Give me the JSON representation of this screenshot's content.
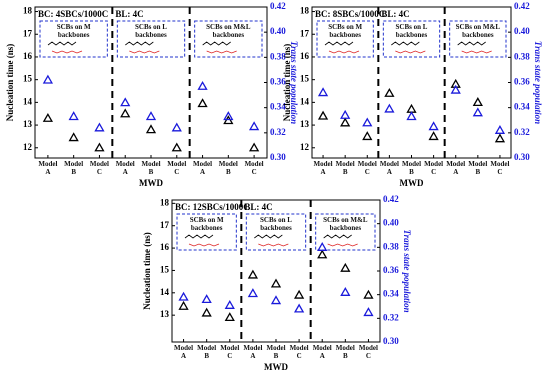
{
  "chart_data": [
    {
      "type": "scatter",
      "annotations": [
        "BC: 4SBCs/1000C",
        "BL: 4C"
      ],
      "group_labels": [
        "SCBs on M backbones",
        "SCBs on L backbones",
        "SCBs on M&L backbones"
      ],
      "categories": [
        "Model A",
        "Model B",
        "Model C",
        "Model A",
        "Model B",
        "Model C",
        "Model A",
        "Model B",
        "Model C"
      ],
      "xlabel": "MWD",
      "ylabel": "Nucleation time (ns)",
      "y2label": "Trans state population",
      "ylim": [
        11.55,
        18.2
      ],
      "yticks": [
        12,
        13,
        14,
        15,
        16,
        17,
        18
      ],
      "y2lim": [
        0.3,
        0.42
      ],
      "y2ticks": [
        {
          "value": 0.3,
          "label": "0.30"
        },
        {
          "value": 0.32,
          "label": "0.32"
        },
        {
          "value": 0.34,
          "label": "0.34"
        },
        {
          "value": 0.36,
          "label": "0.36"
        },
        {
          "value": 0.38,
          "label": "0.38"
        },
        {
          "value": 0.4,
          "label": "0.40"
        },
        {
          "value": 0.42,
          "label": "0.42"
        }
      ],
      "series": [
        {
          "color": "#000000",
          "values": [
            13.3,
            12.45,
            12.0,
            13.5,
            12.8,
            12.0,
            13.95,
            13.2,
            12.0
          ]
        },
        {
          "color": "#1a1adb",
          "axis": "y2",
          "values": [
            0.362,
            0.333,
            0.324,
            0.344,
            0.333,
            0.324,
            0.357,
            0.333,
            0.325
          ]
        }
      ]
    },
    {
      "type": "scatter",
      "annotations": [
        "BC: 8SBCs/1000C",
        "BL: 4C"
      ],
      "group_labels": [
        "SCBs on M backbones",
        "SCBs on L backbones",
        "SCBs on M&L backbones"
      ],
      "categories": [
        "Model A",
        "Model B",
        "Model C",
        "Model A",
        "Model B",
        "Model C",
        "Model A",
        "Model B",
        "Model C"
      ],
      "xlabel": "MWD",
      "ylabel": "Nucleation time (ns)",
      "y2label": "Trans state population",
      "ylim": [
        11.55,
        18.2
      ],
      "yticks": [
        12,
        13,
        14,
        15,
        16,
        17,
        18
      ],
      "y2lim": [
        0.3,
        0.42
      ],
      "y2ticks": [
        {
          "value": 0.3,
          "label": "0.30"
        },
        {
          "value": 0.32,
          "label": "0.32"
        },
        {
          "value": 0.34,
          "label": "0.34"
        },
        {
          "value": 0.36,
          "label": "0.36"
        },
        {
          "value": 0.38,
          "label": "0.38"
        },
        {
          "value": 0.4,
          "label": "0.40"
        },
        {
          "value": 0.42,
          "label": "0.42"
        }
      ],
      "series": [
        {
          "color": "#000000",
          "values": [
            13.4,
            13.1,
            12.5,
            14.4,
            13.7,
            12.5,
            14.8,
            14.0,
            12.4
          ]
        },
        {
          "color": "#1a1adb",
          "axis": "y2",
          "values": [
            0.352,
            0.334,
            0.328,
            0.339,
            0.333,
            0.325,
            0.354,
            0.336,
            0.322
          ]
        }
      ]
    },
    {
      "type": "scatter",
      "annotations": [
        "BC: 12SBCs/1000C",
        "BL: 4C"
      ],
      "group_labels": [
        "SCBs on M backbones",
        "SCBs on L backbones",
        "SCBs on M&L backbones"
      ],
      "categories": [
        "Model A",
        "Model B",
        "Model C",
        "Model A",
        "Model B",
        "Model C",
        "Model A",
        "Model B",
        "Model C"
      ],
      "xlabel": "MWD",
      "ylabel": "Nucleation time (ns)",
      "y2label": "Trans state population",
      "ylim": [
        11.8,
        18.15
      ],
      "yticks": [
        13,
        14,
        15,
        16,
        17,
        18
      ],
      "y2lim": [
        0.3,
        0.42
      ],
      "y2ticks": [
        {
          "value": 0.3,
          "label": "0.30"
        },
        {
          "value": 0.32,
          "label": "0.32"
        },
        {
          "value": 0.34,
          "label": "0.34"
        },
        {
          "value": 0.36,
          "label": "0.36"
        },
        {
          "value": 0.38,
          "label": "0.38"
        },
        {
          "value": 0.4,
          "label": "0.40"
        },
        {
          "value": 0.42,
          "label": "0.42"
        }
      ],
      "series": [
        {
          "color": "#000000",
          "values": [
            13.4,
            13.1,
            12.9,
            14.8,
            14.4,
            13.9,
            15.7,
            15.1,
            13.9
          ]
        },
        {
          "color": "#1a1adb",
          "axis": "y2",
          "values": [
            0.338,
            0.336,
            0.331,
            0.341,
            0.335,
            0.328,
            0.38,
            0.342,
            0.325
          ]
        }
      ]
    }
  ]
}
